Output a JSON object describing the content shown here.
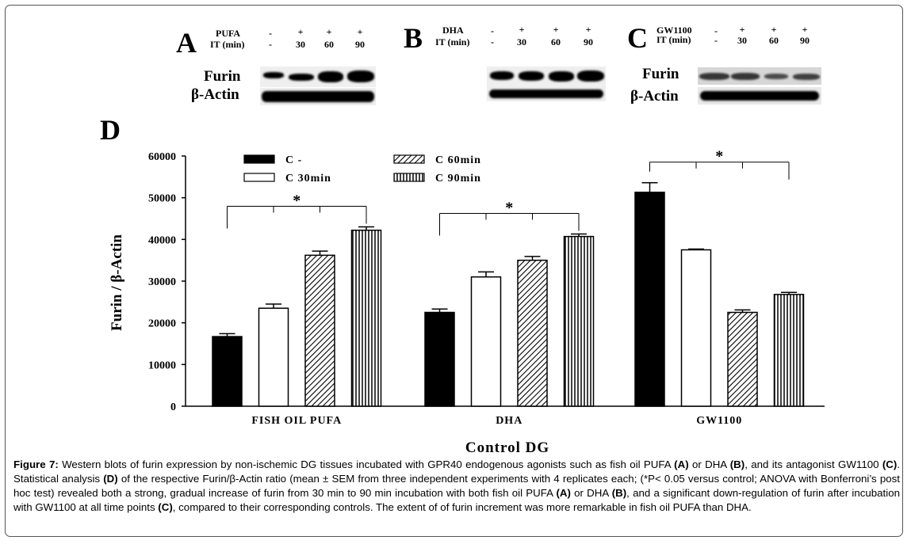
{
  "blots": {
    "A": {
      "letter": "A",
      "treatment_label": "PUFA",
      "it_label": "IT (min)",
      "treatment_values": [
        "-",
        "+",
        "+",
        "+"
      ],
      "time_values": [
        "-",
        "30",
        "60",
        "90"
      ],
      "rows": [
        "Furin",
        "β-Actin"
      ]
    },
    "B": {
      "letter": "B",
      "treatment_label": "DHA",
      "it_label": "IT (min)",
      "treatment_values": [
        "-",
        "+",
        "+",
        "+"
      ],
      "time_values": [
        "-",
        "30",
        "60",
        "90"
      ]
    },
    "C": {
      "letter": "C",
      "treatment_label": "GW1100",
      "it_label": "IT (min)",
      "treatment_values": [
        "-",
        "+",
        "+",
        "+"
      ],
      "time_values": [
        "-",
        "30",
        "60",
        "90"
      ],
      "rows": [
        "Furin",
        "β-Actin"
      ]
    }
  },
  "chart_data": {
    "type": "bar",
    "panel_letter": "D",
    "categories": [
      "FISH OIL PUFA",
      "DHA",
      "GW1100"
    ],
    "xlabel": "Control DG",
    "ylabel": "Furin / β-Actin",
    "ylim": [
      0,
      60000
    ],
    "yticks": [
      "0",
      "10000",
      "20000",
      "30000",
      "40000",
      "50000",
      "60000"
    ],
    "grid": false,
    "legend_position": "top",
    "significance_marker": "*",
    "series": [
      {
        "name": "C -",
        "values": [
          16700,
          22500,
          51300
        ],
        "errors": [
          700,
          800,
          2300
        ],
        "pattern": "solid"
      },
      {
        "name": "C 30min",
        "values": [
          23500,
          31000,
          37500
        ],
        "errors": [
          1000,
          1200,
          200
        ],
        "pattern": "open"
      },
      {
        "name": "C 60min",
        "values": [
          36200,
          35000,
          22500
        ],
        "errors": [
          1000,
          900,
          600
        ],
        "pattern": "diagonal"
      },
      {
        "name": "C 90min",
        "values": [
          42200,
          40700,
          26800
        ],
        "errors": [
          800,
          600,
          500
        ],
        "pattern": "vertical"
      }
    ]
  },
  "caption": {
    "figure_label": "Figure 7:",
    "text_1": " Western blots of furin expression by non-ischemic DG tissues incubated with GPR40 endogenous agonists such as fish oil PUFA ",
    "ref_a": "(A)",
    "text_2": " or DHA ",
    "ref_b": "(B)",
    "text_3": ", and its antagonist GW1100 ",
    "ref_c": "(C)",
    "text_4": ". Statistical analysis ",
    "ref_d": "(D)",
    "text_5": " of the respective Furin/β-Actin ratio (mean ± SEM from three independent experiments with 4 replicates each; (*P< 0.05 versus control; ANOVA with Bonferroni’s post hoc test) revealed both a strong, gradual increase of furin from 30 min to 90 min incubation with both fish oil PUFA ",
    "ref_a2": "(A)",
    "text_6": " or DHA ",
    "ref_b2": "(B)",
    "text_7": ", and a significant down-regulation of furin after incubation with GW1100 at all time points ",
    "ref_c2": "(C)",
    "text_8": ", compared to their corresponding controls. The extent of of furin increment was more remarkable in fish oil PUFA than DHA."
  }
}
